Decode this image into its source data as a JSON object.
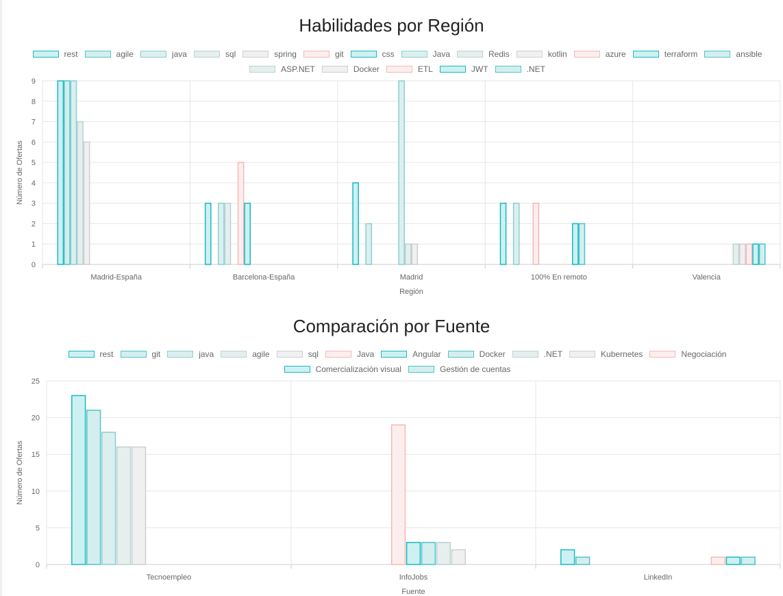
{
  "chart_data": [
    {
      "type": "bar",
      "title": "Habilidades por Región",
      "xlabel": "Región",
      "ylabel": "Número de Ofertas",
      "ylim": [
        0,
        9
      ],
      "yticks": [
        0,
        1,
        2,
        3,
        4,
        5,
        6,
        7,
        8,
        9
      ],
      "grid": true,
      "legend_position": "top",
      "categories": [
        "Madrid-España",
        "Barcelona-España",
        "Madrid",
        "100% En remoto",
        "Valencia"
      ],
      "series": [
        {
          "name": "rest",
          "color": "#19b8c0",
          "fill": "#cdf1f2",
          "values": [
            9,
            3,
            4,
            3,
            null
          ]
        },
        {
          "name": "agile",
          "color": "#4ec4c8",
          "fill": "#d4eeef",
          "values": [
            9,
            null,
            null,
            null,
            null
          ]
        },
        {
          "name": "java",
          "color": "#8acfd1",
          "fill": "#dcefef",
          "values": [
            9,
            3,
            2,
            3,
            null
          ]
        },
        {
          "name": "sql",
          "color": "#b9d3d3",
          "fill": "#e6eeee",
          "values": [
            7,
            3,
            null,
            null,
            null
          ]
        },
        {
          "name": "spring",
          "color": "#cfcfcf",
          "fill": "#f0f0f0",
          "values": [
            6,
            null,
            null,
            null,
            null
          ]
        },
        {
          "name": "git",
          "color": "#f4b8b8",
          "fill": "#fdeeee",
          "values": [
            null,
            5,
            null,
            3,
            null
          ]
        },
        {
          "name": "css",
          "color": "#19b8c0",
          "fill": "#cdf1f2",
          "values": [
            null,
            3,
            null,
            null,
            null
          ]
        },
        {
          "name": "Java",
          "color": "#8acfd1",
          "fill": "#dcefef",
          "values": [
            null,
            null,
            9,
            null,
            null
          ]
        },
        {
          "name": "Redis",
          "color": "#b9d3d3",
          "fill": "#e6eeee",
          "values": [
            null,
            null,
            1,
            null,
            null
          ]
        },
        {
          "name": "kotlin",
          "color": "#cfcfcf",
          "fill": "#f0f0f0",
          "values": [
            null,
            null,
            1,
            null,
            null
          ]
        },
        {
          "name": "azure",
          "color": "#f4b8b8",
          "fill": "#fdeeee",
          "values": [
            null,
            null,
            null,
            null,
            null
          ]
        },
        {
          "name": "terraform",
          "color": "#19b8c0",
          "fill": "#cdf1f2",
          "values": [
            null,
            null,
            null,
            2,
            null
          ]
        },
        {
          "name": "ansible",
          "color": "#4ec4c8",
          "fill": "#d4eeef",
          "values": [
            null,
            null,
            null,
            2,
            null
          ]
        },
        {
          "name": "ASP.NET",
          "color": "#b9d3d3",
          "fill": "#e6eeee",
          "values": [
            null,
            null,
            null,
            null,
            1
          ]
        },
        {
          "name": "Docker",
          "color": "#cfcfcf",
          "fill": "#f0f0f0",
          "values": [
            null,
            null,
            null,
            null,
            1
          ]
        },
        {
          "name": "ETL",
          "color": "#f4b8b8",
          "fill": "#fdeeee",
          "values": [
            null,
            null,
            null,
            null,
            1
          ]
        },
        {
          "name": "JWT",
          "color": "#19b8c0",
          "fill": "#cdf1f2",
          "values": [
            null,
            null,
            null,
            null,
            1
          ]
        },
        {
          "name": ".NET",
          "color": "#4ec4c8",
          "fill": "#d4eeef",
          "values": [
            null,
            null,
            null,
            null,
            1
          ]
        }
      ]
    },
    {
      "type": "bar",
      "title": "Comparación por Fuente",
      "xlabel": "Fuente",
      "ylabel": "Número de Ofertas",
      "ylim": [
        0,
        25
      ],
      "yticks": [
        0,
        5,
        10,
        15,
        20,
        25
      ],
      "grid": true,
      "legend_position": "top",
      "categories": [
        "Tecnoempleo",
        "InfoJobs",
        "LinkedIn"
      ],
      "series": [
        {
          "name": "rest",
          "color": "#19b8c0",
          "fill": "#cdf1f2",
          "values": [
            23,
            null,
            2
          ]
        },
        {
          "name": "git",
          "color": "#4ec4c8",
          "fill": "#d4eeef",
          "values": [
            21,
            null,
            1
          ]
        },
        {
          "name": "java",
          "color": "#8acfd1",
          "fill": "#dcefef",
          "values": [
            18,
            null,
            null
          ]
        },
        {
          "name": "agile",
          "color": "#b9d3d3",
          "fill": "#e6eeee",
          "values": [
            16,
            null,
            null
          ]
        },
        {
          "name": "sql",
          "color": "#cfcfcf",
          "fill": "#f0f0f0",
          "values": [
            16,
            null,
            null
          ]
        },
        {
          "name": "Java",
          "color": "#f4b8b8",
          "fill": "#fdeeee",
          "values": [
            null,
            19,
            null
          ]
        },
        {
          "name": "Angular",
          "color": "#19b8c0",
          "fill": "#cdf1f2",
          "values": [
            null,
            3,
            null
          ]
        },
        {
          "name": "Docker",
          "color": "#4ec4c8",
          "fill": "#d4eeef",
          "values": [
            null,
            3,
            null
          ]
        },
        {
          "name": ".NET",
          "color": "#b9d3d3",
          "fill": "#e6eeee",
          "values": [
            null,
            3,
            null
          ]
        },
        {
          "name": "Kubernetes",
          "color": "#cfcfcf",
          "fill": "#f0f0f0",
          "values": [
            null,
            2,
            null
          ]
        },
        {
          "name": "Negociación",
          "color": "#f4b8b8",
          "fill": "#fdeeee",
          "values": [
            null,
            null,
            1
          ]
        },
        {
          "name": "Comercialización visual",
          "color": "#19b8c0",
          "fill": "#cdf1f2",
          "values": [
            null,
            null,
            1
          ]
        },
        {
          "name": "Gestión de cuentas",
          "color": "#4ec4c8",
          "fill": "#d4eeef",
          "values": [
            null,
            null,
            1
          ]
        }
      ]
    }
  ]
}
